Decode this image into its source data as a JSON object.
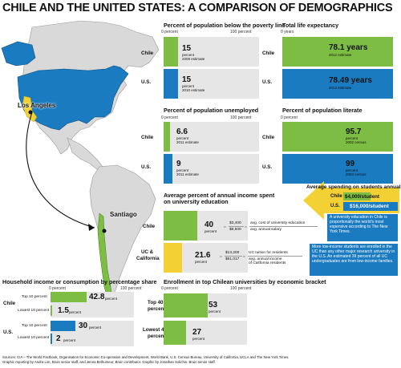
{
  "title": "CHILE AND THE UNITED STATES: A COMPARISON OF DEMOGRAPHICS",
  "map": {
    "city_us": "Los Angeles",
    "city_chile": "Santiago"
  },
  "poverty": {
    "heading": "Percent of population below the poverty line",
    "axis_min": "0 percent",
    "axis_max": "100 percent",
    "rows": [
      {
        "label": "Chile",
        "value": 15,
        "value_text": "15",
        "unit": "percent",
        "note": "2009 estimate"
      },
      {
        "label": "U.S.",
        "value": 15,
        "value_text": "15",
        "unit": "percent",
        "note": "2010 estimate"
      }
    ]
  },
  "life": {
    "heading": "Total life expectancy",
    "axis_min": "0 years",
    "rows": [
      {
        "label": "Chile",
        "value": 78.1,
        "value_text": "78.1 years",
        "note": "2012 estimate"
      },
      {
        "label": "U.S.",
        "value": 78.49,
        "value_text": "78.49 years",
        "note": "2012 estimate"
      }
    ]
  },
  "unemployed": {
    "heading": "Percent of population unemployed",
    "axis_min": "0 percent",
    "axis_max": "100 percent",
    "rows": [
      {
        "label": "Chile",
        "value": 6.6,
        "value_text": "6.6",
        "unit": "percent",
        "note": "2011 estimate"
      },
      {
        "label": "U.S.",
        "value": 9,
        "value_text": "9",
        "unit": "percent",
        "note": "2011 estimate"
      }
    ]
  },
  "literate": {
    "heading": "Percent of population literate",
    "axis_min": "0 percent",
    "rows": [
      {
        "label": "Chile",
        "value": 95.7,
        "value_text": "95.7",
        "unit": "percent",
        "note": "2002 census"
      },
      {
        "label": "U.S.",
        "value": 99,
        "value_text": "99",
        "unit": "percent",
        "note": "2003 census"
      }
    ]
  },
  "spending": {
    "heading": "Average spending on students annually",
    "chile_label": "Chile",
    "chile_value": "$4,000/student",
    "us_label": "U.S.",
    "us_value": "$16,000/student"
  },
  "income_edu": {
    "heading_1": "Average percent of annual income spent",
    "heading_2": "on university education",
    "chile": {
      "label": "Chile",
      "value": 40,
      "value_text": "40",
      "unit": "percent",
      "numerator": "$3,400",
      "denominator": "$8,500",
      "desc_1": "avg. cost of university education",
      "desc_2": "avg. annual salary"
    },
    "uc": {
      "label_1": "UC &",
      "label_2": "California",
      "value": 21.6,
      "value_text": "21.6",
      "unit": "percent",
      "numerator": "$13,200",
      "denominator": "$61,017",
      "desc_1": "UC tuition for residents",
      "desc_2": "avg. annual income",
      "desc_3": "of California residents"
    }
  },
  "notes": {
    "note1": "A university education in Chile is proportionally the world's most expensive according to The New York Times.",
    "note2": "More low-income students are enrolled in the UC than any other major research university in the U.S. An estimated 39 percent of all UC undergraduates are from low-income families."
  },
  "household": {
    "heading": "Household income or consumption by percentage share",
    "axis_min": "0 percent",
    "axis_max": "100 percent",
    "groups": [
      {
        "country": "Chile",
        "rows": [
          {
            "label": "Top 10 percent",
            "value": 42.8,
            "value_text": "42.8",
            "unit": "percent"
          },
          {
            "label": "Lowest 10 percent",
            "value": 1.5,
            "value_text": "1.5",
            "unit": "percent"
          }
        ]
      },
      {
        "country": "U.S.",
        "rows": [
          {
            "label": "Top 10 percent",
            "value": 30,
            "value_text": "30",
            "unit": "percent"
          },
          {
            "label": "Lowest 10 percent",
            "value": 2,
            "value_text": "2",
            "unit": "percent"
          }
        ]
      }
    ]
  },
  "enrollment": {
    "heading": "Enrollment in top Chilean universities by economic bracket",
    "axis_min": "0 percent",
    "axis_max": "100 percent",
    "rows": [
      {
        "label_1": "Top 40",
        "label_2": "percent",
        "value": 53,
        "value_text": "53",
        "unit": "percent"
      },
      {
        "label_1": "Lowest 40",
        "label_2": "percent",
        "value": 27,
        "value_text": "27",
        "unit": "percent"
      }
    ]
  },
  "footer": {
    "line1": "Sources: CIA – The World Factbook, Organisation for Economic Co-operation and Development, World Bank, U.S. Census Bureau, University of California, UCLA and The New York Times.",
    "line2": "Graphic reporting by Andra Lim, Bruin senior staff, and Jenna Belhumeur, Bruin contributor. Graphic by Jonathan Solichin, Bruin senior staff."
  },
  "colors": {
    "chile": "#7dbd43",
    "us": "#1a7bc1",
    "uc": "#f3d135",
    "track": "#e6e6e6"
  }
}
